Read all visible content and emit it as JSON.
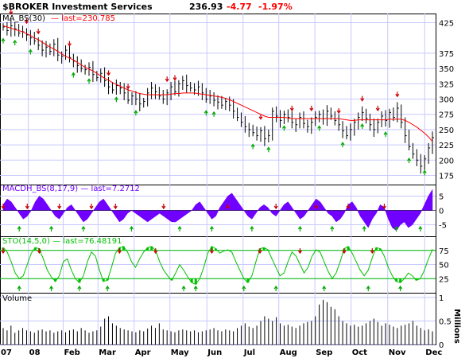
{
  "header": {
    "symbol": "$BROKER Investment Services",
    "last": "236.93",
    "change": "-4.77",
    "change_pct": "-1.97%"
  },
  "colors": {
    "grid": "#c8c8ff",
    "ma": "#ff0000",
    "macd": "#7000ff",
    "sto": "#00c000",
    "down_arrow": "#cc0000",
    "up_arrow": "#00aa00",
    "price_bar": "#000000",
    "volume": "#000000",
    "frame": "#000000"
  },
  "chart_data": [
    {
      "type": "line",
      "name": "price",
      "label": "MA_BS(30) — last=230.785",
      "ma_label_part1": "MA_BS(30)",
      "ma_label_part2": "— last=230.785",
      "y_ticks": [
        175,
        200,
        225,
        250,
        275,
        300,
        325,
        350,
        375,
        425
      ],
      "ylim": [
        160,
        440
      ],
      "x_labels": [
        "07",
        "08",
        "Feb",
        "Mar",
        "Apr",
        "May",
        "Jun",
        "Jul",
        "Aug",
        "Sep",
        "Oct",
        "Nov",
        "Dec"
      ],
      "x_label_pos": [
        0.0,
        0.065,
        0.145,
        0.225,
        0.308,
        0.39,
        0.475,
        0.558,
        0.64,
        0.723,
        0.806,
        0.89,
        0.975
      ],
      "close": [
        418,
        412,
        420,
        415,
        408,
        410,
        405,
        400,
        395,
        388,
        380,
        385,
        378,
        390,
        372,
        370,
        380,
        368,
        362,
        355,
        350,
        348,
        352,
        340,
        335,
        342,
        330,
        320,
        315,
        322,
        318,
        310,
        298,
        305,
        300,
        292,
        296,
        310,
        318,
        312,
        305,
        300,
        310,
        320,
        312,
        325,
        330,
        322,
        318,
        315,
        320,
        310,
        300,
        305,
        298,
        295,
        290,
        296,
        290,
        280,
        270,
        262,
        255,
        250,
        245,
        240,
        248,
        235,
        240,
        280,
        272,
        265,
        275,
        270,
        262,
        258,
        270,
        260,
        255,
        262,
        270,
        275,
        268,
        280,
        272,
        265,
        258,
        248,
        240,
        250,
        262,
        270,
        278,
        268,
        258,
        250,
        262,
        272,
        265,
        278,
        270,
        285,
        262,
        240,
        222,
        210,
        200,
        190,
        202,
        220,
        236.93
      ],
      "ma": [
        420,
        418,
        416,
        414,
        412,
        410,
        407,
        404,
        400,
        397,
        393,
        389,
        385,
        382,
        378,
        374,
        370,
        367,
        364,
        360,
        356,
        352,
        349,
        346,
        342,
        338,
        334,
        331,
        327,
        324,
        321,
        318,
        315,
        313,
        311,
        309,
        308,
        307,
        307,
        307,
        307,
        307,
        307,
        308,
        309,
        309,
        310,
        310,
        310,
        310,
        309,
        308,
        307,
        306,
        305,
        304,
        303,
        301,
        299,
        296,
        293,
        290,
        287,
        284,
        281,
        278,
        275,
        272,
        270,
        270,
        270,
        270,
        270,
        269,
        268,
        268,
        268,
        268,
        268,
        268,
        268,
        268,
        268,
        268,
        268,
        268,
        268,
        267,
        266,
        265,
        265,
        266,
        266,
        266,
        266,
        266,
        266,
        266,
        266,
        267,
        267,
        267,
        267,
        265,
        262,
        258,
        254,
        249,
        244,
        238,
        230.785
      ],
      "down_arrows": [
        2,
        6,
        9,
        17,
        27,
        32,
        42,
        44,
        66,
        74,
        79,
        86,
        92,
        96,
        101
      ],
      "up_arrows": [
        0,
        3,
        7,
        18,
        22,
        29,
        34,
        52,
        54,
        64,
        68,
        72,
        81,
        87,
        92,
        98,
        104,
        108
      ]
    },
    {
      "type": "area",
      "name": "macd",
      "label": "MACDH_BS(8,17,9) — last=7.2712",
      "y_ticks": [
        "5",
        "0",
        "-5"
      ],
      "ylim": [
        -9,
        9
      ],
      "values": [
        2,
        4,
        3,
        1,
        -1,
        -3,
        -2,
        0,
        3,
        5,
        4,
        2,
        0,
        -2,
        -3,
        -1,
        1,
        2,
        0,
        -2,
        -4,
        -3,
        -1,
        1,
        3,
        4,
        2,
        0,
        -2,
        -4,
        -3,
        -1,
        0,
        -1,
        -2,
        -3,
        -4,
        -3,
        -2,
        -1,
        -2,
        -3,
        -4,
        -4,
        -3,
        -2,
        -1,
        0,
        2,
        3,
        1,
        -1,
        -3,
        -2,
        1,
        3,
        5,
        6,
        4,
        2,
        0,
        -2,
        -3,
        -1,
        1,
        2,
        1,
        -1,
        -2,
        0,
        2,
        3,
        1,
        -1,
        -3,
        -2,
        0,
        2,
        4,
        3,
        1,
        -1,
        -2,
        -4,
        -3,
        -1,
        2,
        3,
        1,
        -2,
        -4,
        -6,
        -3,
        -1,
        2,
        1,
        -3,
        -6,
        -7,
        -5,
        -4,
        -6,
        -5,
        -3,
        -1,
        2,
        5,
        7.27
      ],
      "down_arrows": [
        0,
        6,
        14,
        22,
        28,
        40,
        56,
        68,
        78,
        86,
        95
      ],
      "up_arrows": [
        4,
        12,
        20,
        32,
        44,
        52,
        62,
        74,
        82,
        90,
        98,
        104
      ]
    },
    {
      "type": "line",
      "name": "sto",
      "label": "STO(14,5,0) — last=76.48191",
      "y_ticks": [
        "75",
        "50",
        "25"
      ],
      "ylim": [
        0,
        100
      ],
      "lines": [
        75,
        25
      ],
      "values": [
        80,
        72,
        55,
        35,
        25,
        30,
        50,
        70,
        80,
        78,
        60,
        40,
        28,
        20,
        30,
        55,
        60,
        40,
        25,
        18,
        30,
        55,
        72,
        65,
        40,
        20,
        22,
        45,
        70,
        80,
        82,
        72,
        55,
        45,
        60,
        72,
        80,
        82,
        75,
        55,
        40,
        30,
        22,
        35,
        50,
        40,
        28,
        18,
        15,
        25,
        45,
        70,
        82,
        78,
        70,
        74,
        76,
        72,
        55,
        40,
        25,
        18,
        30,
        55,
        78,
        80,
        76,
        60,
        45,
        30,
        35,
        55,
        72,
        65,
        50,
        35,
        45,
        65,
        76,
        72,
        55,
        38,
        25,
        35,
        55,
        78,
        82,
        70,
        55,
        40,
        30,
        40,
        62,
        80,
        78,
        65,
        45,
        30,
        20,
        18,
        25,
        35,
        30,
        22,
        25,
        40,
        60,
        76.48
      ],
      "down_arrows": [
        0,
        9,
        29,
        38,
        52,
        64,
        74,
        85,
        92
      ],
      "up_arrows": [
        4,
        12,
        19,
        26,
        45,
        48,
        60,
        68,
        80,
        91,
        99
      ]
    },
    {
      "type": "bar",
      "name": "volume",
      "label": "Volume",
      "y_ticks": [
        "1",
        "0.5",
        "0"
      ],
      "y_unit": "Millions",
      "ylim": [
        0,
        1.1
      ],
      "values": [
        0.35,
        0.3,
        0.4,
        0.25,
        0.3,
        0.35,
        0.3,
        0.28,
        0.25,
        0.3,
        0.32,
        0.28,
        0.3,
        0.25,
        0.28,
        0.3,
        0.26,
        0.3,
        0.32,
        0.28,
        0.35,
        0.3,
        0.25,
        0.28,
        0.3,
        0.38,
        0.55,
        0.6,
        0.45,
        0.4,
        0.35,
        0.32,
        0.3,
        0.28,
        0.26,
        0.3,
        0.28,
        0.34,
        0.4,
        0.35,
        0.45,
        0.32,
        0.3,
        0.28,
        0.26,
        0.3,
        0.32,
        0.3,
        0.28,
        0.3,
        0.26,
        0.28,
        0.3,
        0.32,
        0.35,
        0.3,
        0.28,
        0.32,
        0.3,
        0.28,
        0.35,
        0.4,
        0.45,
        0.38,
        0.35,
        0.4,
        0.5,
        0.6,
        0.55,
        0.5,
        0.58,
        0.45,
        0.4,
        0.42,
        0.38,
        0.35,
        0.4,
        0.45,
        0.48,
        0.5,
        0.6,
        0.85,
        0.95,
        0.9,
        0.8,
        0.75,
        0.6,
        0.5,
        0.45,
        0.4,
        0.42,
        0.38,
        0.4,
        0.45,
        0.5,
        0.55,
        0.48,
        0.4,
        0.45,
        0.42,
        0.38,
        0.35,
        0.4,
        0.42,
        0.45,
        0.5,
        0.4,
        0.35,
        0.3,
        0.32,
        0.28
      ]
    }
  ]
}
